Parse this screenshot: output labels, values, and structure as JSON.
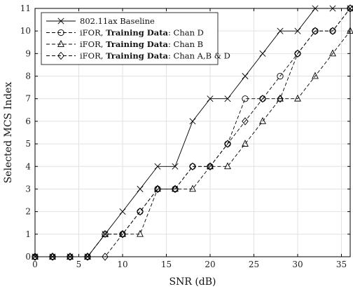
{
  "chart_data": {
    "type": "line",
    "xlabel": "SNR (dB)",
    "ylabel": "Selected MCS Index",
    "xlim": [
      0,
      36
    ],
    "ylim": [
      0,
      11
    ],
    "xticks": [
      0,
      5,
      10,
      15,
      20,
      25,
      30,
      35
    ],
    "yticks": [
      0,
      1,
      2,
      3,
      4,
      5,
      6,
      7,
      8,
      9,
      10,
      11
    ],
    "grid": true,
    "legend_position": "top-left",
    "x": [
      0,
      2,
      4,
      6,
      8,
      10,
      12,
      14,
      16,
      18,
      20,
      22,
      24,
      26,
      28,
      30,
      32,
      34,
      36
    ],
    "series": [
      {
        "name": "802.11ax Baseline",
        "legend_parts": [
          {
            "text": "802.11ax Baseline",
            "bold": false
          }
        ],
        "marker": "x",
        "dash": "solid",
        "values": [
          0,
          0,
          0,
          0,
          1,
          2,
          3,
          4,
          4,
          6,
          7,
          7,
          8,
          9,
          10,
          10,
          11,
          11,
          11
        ]
      },
      {
        "name": "iFOR, Training Data: Chan D",
        "legend_parts": [
          {
            "text": "iFOR, ",
            "bold": false
          },
          {
            "text": "Training Data",
            "bold": true
          },
          {
            "text": ": Chan D",
            "bold": false
          }
        ],
        "marker": "circle",
        "dash": "dashed",
        "values": [
          0,
          0,
          0,
          0,
          1,
          1,
          2,
          3,
          3,
          4,
          4,
          5,
          7,
          7,
          8,
          9,
          10,
          10,
          11
        ]
      },
      {
        "name": "iFOR, Training Data: Chan B",
        "legend_parts": [
          {
            "text": "iFOR, ",
            "bold": false
          },
          {
            "text": "Training Data",
            "bold": true
          },
          {
            "text": ": Chan B",
            "bold": false
          }
        ],
        "marker": "triangle",
        "dash": "dashed",
        "values": [
          0,
          0,
          0,
          0,
          1,
          1,
          1,
          3,
          3,
          3,
          4,
          4,
          5,
          6,
          7,
          7,
          8,
          9,
          10
        ]
      },
      {
        "name": "iFOR, Training Data: Chan A,B & D",
        "legend_parts": [
          {
            "text": "iFOR, ",
            "bold": false
          },
          {
            "text": "Training Data",
            "bold": true
          },
          {
            "text": ": Chan A,B & D",
            "bold": false
          }
        ],
        "marker": "diamond",
        "dash": "dashed",
        "values": [
          0,
          0,
          0,
          0,
          0,
          1,
          2,
          3,
          3,
          4,
          4,
          5,
          6,
          7,
          7,
          9,
          10,
          10,
          11
        ]
      }
    ]
  }
}
